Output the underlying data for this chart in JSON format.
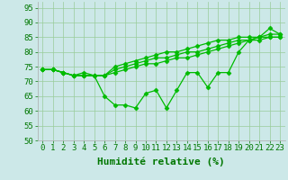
{
  "x": [
    0,
    1,
    2,
    3,
    4,
    5,
    6,
    7,
    8,
    9,
    10,
    11,
    12,
    13,
    14,
    15,
    16,
    17,
    18,
    19,
    20,
    21,
    22,
    23
  ],
  "series": [
    [
      74,
      74,
      73,
      72,
      73,
      72,
      65,
      62,
      62,
      61,
      66,
      67,
      61,
      67,
      73,
      73,
      68,
      73,
      73,
      80,
      84,
      85,
      88,
      86
    ],
    [
      74,
      74,
      73,
      72,
      72,
      72,
      72,
      73,
      74,
      75,
      76,
      76,
      77,
      78,
      78,
      79,
      80,
      81,
      82,
      83,
      84,
      84,
      85,
      85
    ],
    [
      74,
      74,
      73,
      72,
      72,
      72,
      72,
      74,
      75,
      76,
      77,
      78,
      78,
      79,
      80,
      80,
      81,
      82,
      83,
      84,
      84,
      85,
      85,
      85
    ],
    [
      74,
      74,
      73,
      72,
      72,
      72,
      72,
      75,
      76,
      77,
      78,
      79,
      80,
      80,
      81,
      82,
      83,
      84,
      84,
      85,
      85,
      85,
      86,
      86
    ]
  ],
  "line_color": "#00bb00",
  "marker": "D",
  "markersize": 2.5,
  "linewidth": 0.9,
  "bg_color": "#cce8e8",
  "grid_color": "#99cc99",
  "xlabel": "Humidité relative (%)",
  "ylim": [
    50,
    97
  ],
  "yticks": [
    50,
    55,
    60,
    65,
    70,
    75,
    80,
    85,
    90,
    95
  ],
  "xticks": [
    0,
    1,
    2,
    3,
    4,
    5,
    6,
    7,
    8,
    9,
    10,
    11,
    12,
    13,
    14,
    15,
    16,
    17,
    18,
    19,
    20,
    21,
    22,
    23
  ],
  "xlabel_fontsize": 8,
  "tick_fontsize": 6.5,
  "tick_color": "#007700",
  "spine_color": "#aaaaaa"
}
